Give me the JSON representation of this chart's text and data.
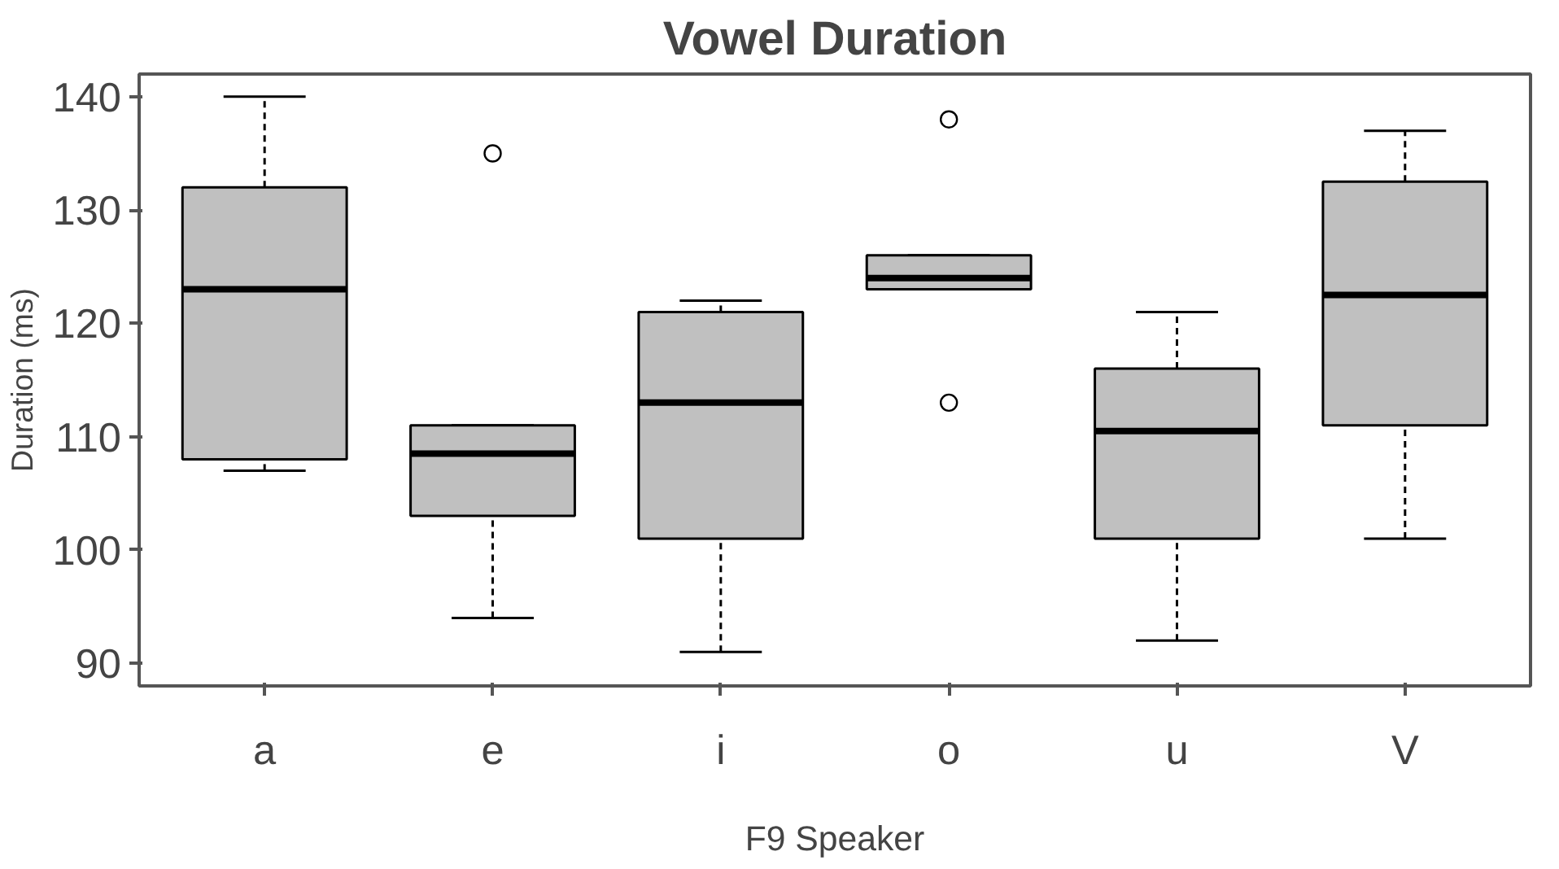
{
  "chart_data": {
    "type": "box",
    "title": "Vowel Duration",
    "xlabel": "F9 Speaker",
    "ylabel": "Duration (ms)",
    "categories": [
      "a",
      "e",
      "i",
      "o",
      "u",
      "V"
    ],
    "boxes": [
      {
        "low": 107,
        "q1": 108,
        "median": 123,
        "q3": 132,
        "high": 140
      },
      {
        "low": 94,
        "q1": 103,
        "median": 108.5,
        "q3": 111,
        "high": 111,
        "outliers": [
          135
        ]
      },
      {
        "low": 91,
        "q1": 101,
        "median": 113,
        "q3": 121,
        "high": 122
      },
      {
        "low": 123,
        "q1": 123,
        "median": 124,
        "q3": 126,
        "high": 126,
        "outliers": [
          138,
          113
        ]
      },
      {
        "low": 92,
        "q1": 101,
        "median": 110.5,
        "q3": 116,
        "high": 121
      },
      {
        "low": 101,
        "q1": 111,
        "median": 122.5,
        "q3": 132.5,
        "high": 137
      }
    ],
    "color": "#c0c0c0",
    "ylim": [
      88,
      142
    ],
    "yticks": [
      90,
      100,
      110,
      120,
      130,
      140
    ],
    "grid": false
  }
}
